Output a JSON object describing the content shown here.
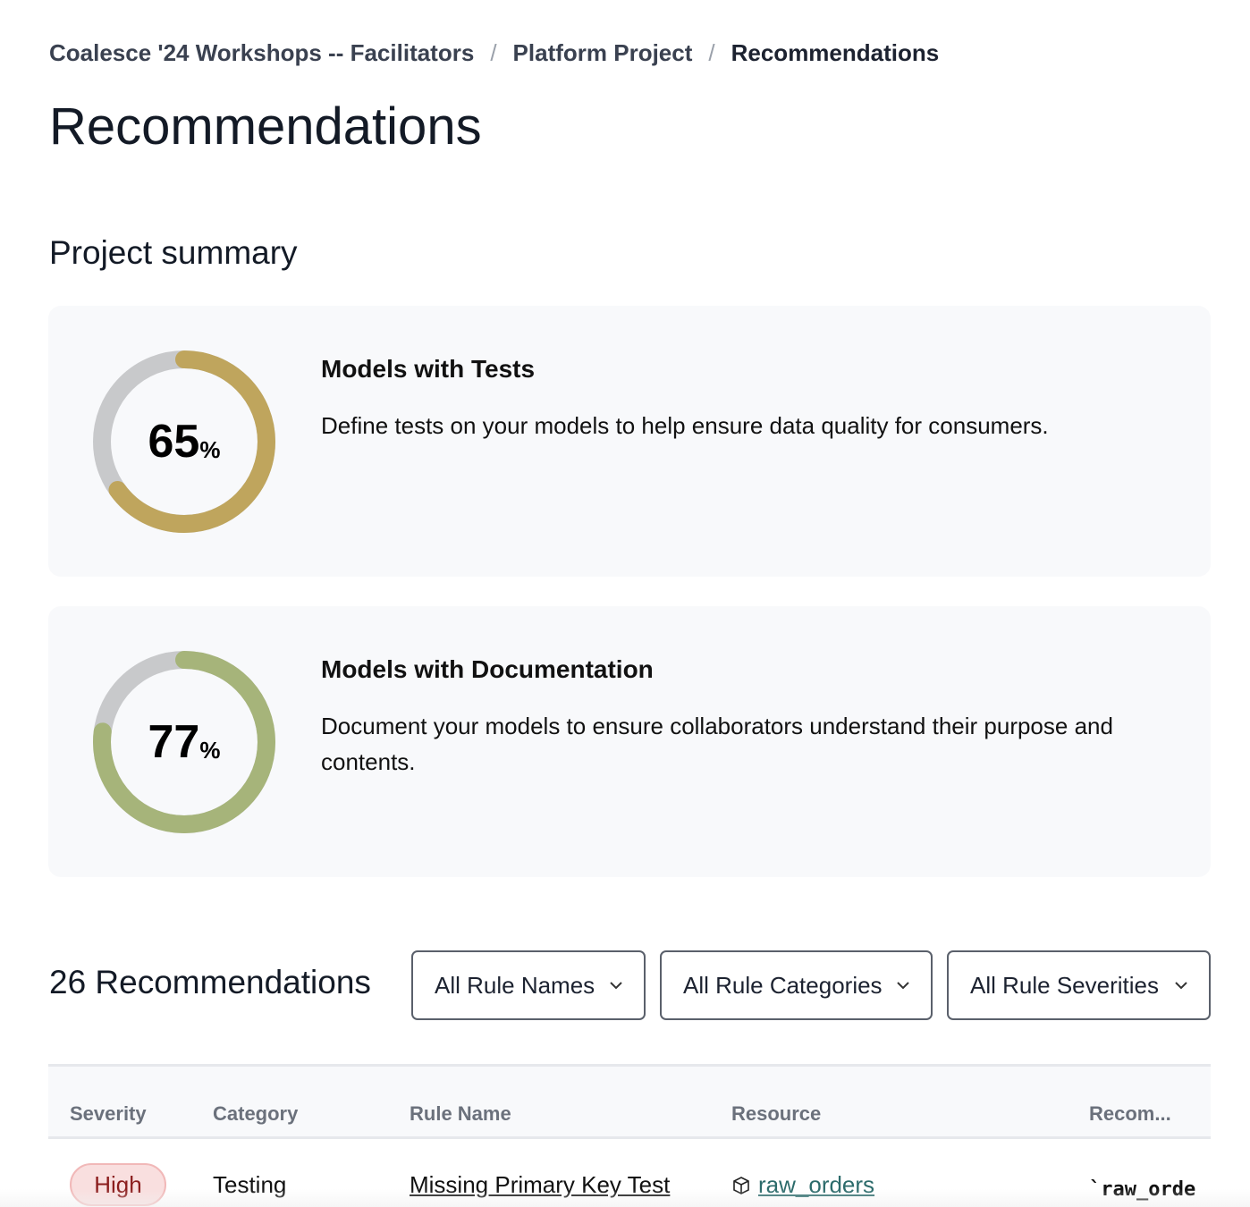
{
  "breadcrumb": [
    "Coalesce '24 Workshops -- Facilitators",
    "Platform Project",
    "Recommendations"
  ],
  "page_title": "Recommendations",
  "summary_title": "Project summary",
  "cards": [
    {
      "title": "Models with Tests",
      "description": "Define tests on your models to help ensure data quality for consumers.",
      "percent": 65,
      "percent_label": "65",
      "unit": "%",
      "color": "#bfa55d"
    },
    {
      "title": "Models with Documentation",
      "description": "Document your models to ensure collaborators understand their purpose and contents.",
      "percent": 77,
      "percent_label": "77",
      "unit": "%",
      "color": "#a6b47a"
    }
  ],
  "track_color": "#c8c9cb",
  "recommendations_count": "26 Recommendations",
  "filters": [
    "All Rule Names",
    "All Rule Categories",
    "All Rule Severities"
  ],
  "table": {
    "columns": [
      "Severity",
      "Category",
      "Rule Name",
      "Resource",
      "Recom..."
    ],
    "rows": [
      {
        "severity": "High",
        "category": "Testing",
        "rule_name": "Missing Primary Key Test",
        "resource": "raw_orders",
        "recommendation": "`raw_orde"
      }
    ]
  }
}
